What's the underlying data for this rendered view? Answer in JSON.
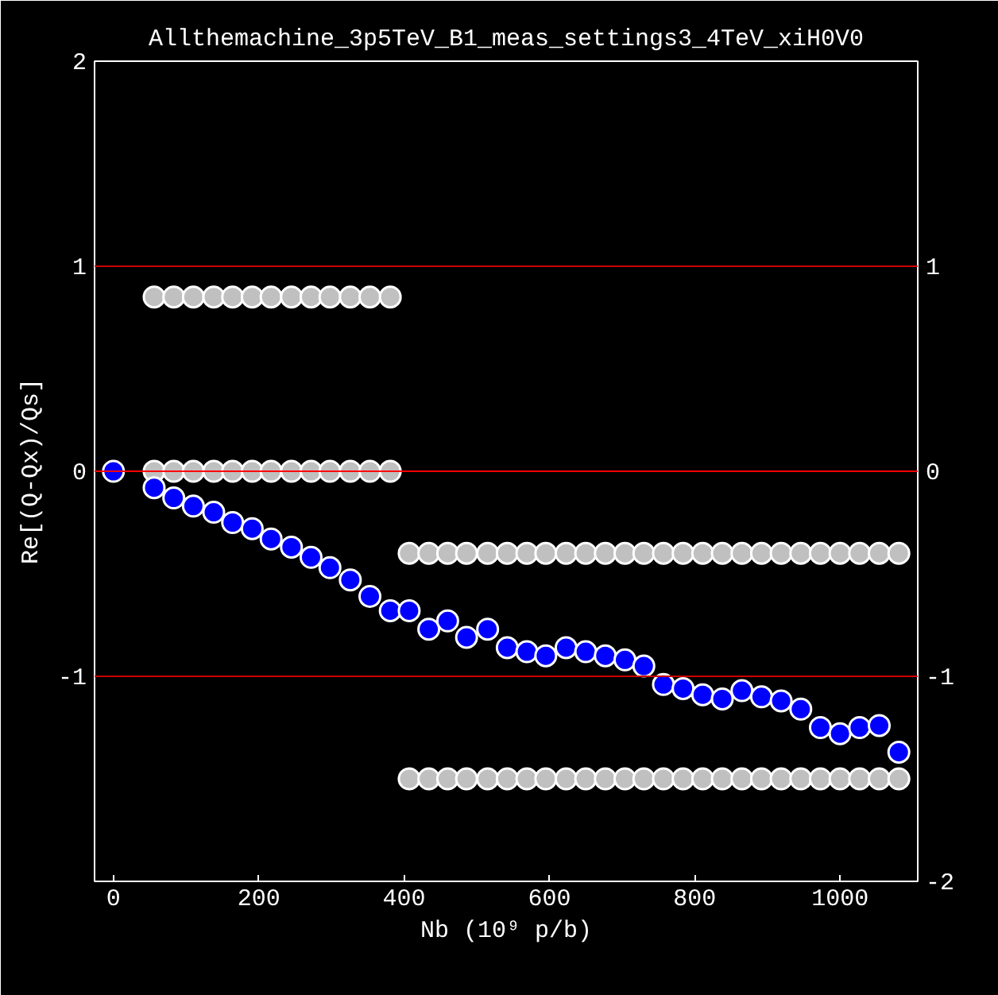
{
  "chart_data": {
    "type": "scatter",
    "title": "Allthemachine_3p5TeV_B1_meas_settings3_4TeV_xiH0V0",
    "xlabel": "Nb (10⁹ p/b)",
    "ylabel": "Re[(Q-Qx)/Qs]",
    "xlim": [
      -26,
      1107
    ],
    "xticks": [
      0,
      200,
      400,
      600,
      800,
      1000
    ],
    "ylim": [
      -2,
      2
    ],
    "yticks": [
      -1,
      0,
      1,
      2
    ],
    "y2lim": [
      -2,
      2
    ],
    "y2ticks": [
      -2,
      -1,
      0,
      1
    ],
    "grid": false,
    "marker": "circle",
    "ref_lines": [
      {
        "axis": "y",
        "value": 1,
        "color": "#cc0000"
      },
      {
        "axis": "y",
        "value": 0,
        "color": "#ff0000"
      },
      {
        "axis": "y",
        "value": -1,
        "color": "#cc0000"
      }
    ],
    "series": [
      {
        "color": "#c0c0c0",
        "x": [
          56,
          83,
          110,
          138,
          164,
          191,
          217,
          245,
          272,
          298,
          326,
          353,
          381,
          56,
          83,
          110,
          138,
          164,
          191,
          217,
          245,
          272,
          298,
          326,
          353,
          381,
          407,
          434,
          460,
          486,
          515,
          542,
          569,
          595,
          623,
          650,
          677,
          704,
          730,
          757,
          784,
          811,
          838,
          865,
          892,
          919,
          946,
          973,
          1000,
          1027,
          1054,
          1081,
          407,
          434,
          460,
          486,
          515,
          542,
          569,
          595,
          623,
          650,
          677,
          704,
          730,
          757,
          784,
          811,
          838,
          865,
          892,
          919,
          946,
          973,
          1000,
          1027,
          1054,
          1081
        ],
        "values": [
          0,
          0,
          0,
          0,
          0,
          0,
          0,
          0,
          0,
          0,
          0,
          0,
          0,
          0.85,
          0.85,
          0.85,
          0.85,
          0.85,
          0.85,
          0.85,
          0.85,
          0.85,
          0.85,
          0.85,
          0.85,
          0.85,
          -0.4,
          -0.4,
          -0.4,
          -0.4,
          -0.4,
          -0.4,
          -0.4,
          -0.4,
          -0.4,
          -0.4,
          -0.4,
          -0.4,
          -0.4,
          -0.4,
          -0.4,
          -0.4,
          -0.4,
          -0.4,
          -0.4,
          -0.4,
          -0.4,
          -0.4,
          -0.4,
          -0.4,
          -0.4,
          -0.4,
          -1.5,
          -1.5,
          -1.5,
          -1.5,
          -1.5,
          -1.5,
          -1.5,
          -1.5,
          -1.5,
          -1.5,
          -1.5,
          -1.5,
          -1.5,
          -1.5,
          -1.5,
          -1.5,
          -1.5,
          -1.5,
          -1.5,
          -1.5,
          -1.5,
          -1.5,
          -1.5,
          -1.5,
          -1.5,
          -1.5
        ]
      },
      {
        "color": "#0000ff",
        "x": [
          0,
          56,
          83,
          110,
          138,
          164,
          191,
          217,
          245,
          272,
          298,
          326,
          353,
          381,
          407,
          434,
          460,
          486,
          515,
          542,
          569,
          595,
          623,
          650,
          677,
          704,
          730,
          757,
          784,
          811,
          838,
          865,
          892,
          919,
          946,
          973,
          1000,
          1027,
          1054,
          1081
        ],
        "values": [
          0,
          -0.08,
          -0.13,
          -0.17,
          -0.2,
          -0.25,
          -0.28,
          -0.33,
          -0.37,
          -0.42,
          -0.47,
          -0.53,
          -0.61,
          -0.68,
          -0.68,
          -0.77,
          -0.73,
          -0.81,
          -0.77,
          -0.86,
          -0.88,
          -0.9,
          -0.86,
          -0.88,
          -0.9,
          -0.92,
          -0.95,
          -1.04,
          -1.06,
          -1.09,
          -1.11,
          -1.07,
          -1.1,
          -1.12,
          -1.16,
          -1.25,
          -1.28,
          -1.25,
          -1.24,
          -1.37
        ]
      }
    ]
  }
}
